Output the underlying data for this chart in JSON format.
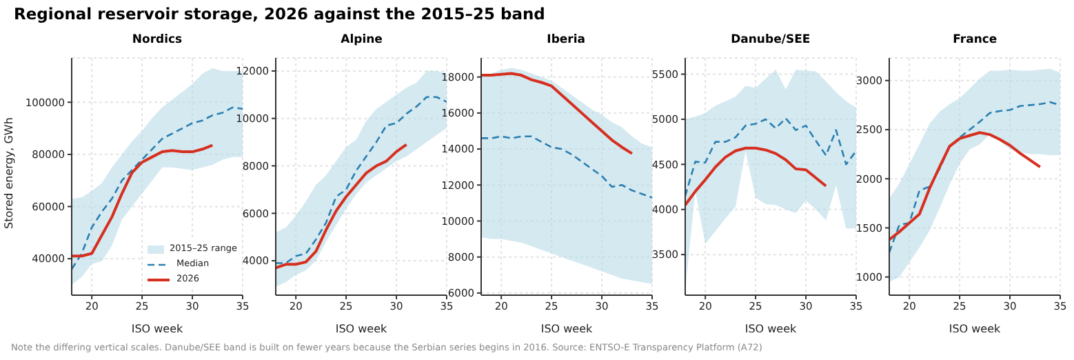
{
  "chart_data": [
    {
      "type": "other",
      "title": "Regional reservoir storage, 2026 against the 2015–25 band",
      "annotations": [
        "Note the differing vertical scales. Danube/SEE band is built on fewer years because the Serbian series begins in 2016. Source: ENTSO-E Transparency Platform (A72)"
      ]
    },
    {
      "type": "line",
      "title": "Nordics",
      "xlabel": "ISO week",
      "ylabel": "Stored energy, GWh",
      "annotations": [
        "2015–25 range"
      ],
      "x": [
        18,
        19,
        20,
        21,
        22,
        23,
        24,
        25,
        26,
        27,
        28,
        29,
        30,
        31,
        32,
        33,
        34,
        35
      ],
      "xlim": [
        18,
        35
      ],
      "xticks": [
        20,
        25,
        30,
        35
      ],
      "ylim": [
        26000,
        117000
      ],
      "yticks": [
        40000,
        60000,
        80000,
        100000
      ],
      "grid": true,
      "legend": "bottom right",
      "series": [
        {
          "type": "line",
          "name": "Median",
          "color": "#2a7fb0",
          "line_style": "dashed",
          "values": [
            36000,
            42000,
            52000,
            58000,
            63000,
            70000,
            74000,
            78000,
            82000,
            86000,
            88000,
            90000,
            92000,
            93000,
            95000,
            96000,
            98000,
            97500
          ],
          "lower": [
            30000,
            33000,
            38000,
            39000,
            45000,
            55000,
            60000,
            65000,
            70000,
            75000,
            75000,
            74500,
            74000,
            75000,
            76000,
            78000,
            79000,
            79000
          ],
          "upper": [
            63000,
            63500,
            66000,
            69000,
            75000,
            80000,
            85000,
            89000,
            94000,
            98000,
            101000,
            104000,
            107000,
            111000,
            113000,
            112000,
            112000,
            112000
          ]
        },
        {
          "type": "line",
          "name": "2026",
          "color": "#d62f1f",
          "line_style": "solid",
          "values": [
            41000,
            41000,
            42000,
            49000,
            56000,
            65000,
            73000,
            77000,
            79000,
            81000,
            81500,
            81000,
            81000,
            82000,
            83500,
            null,
            null,
            null
          ]
        }
      ]
    },
    {
      "type": "line",
      "title": "Alpine",
      "xlabel": "ISO week",
      "x": [
        18,
        19,
        20,
        21,
        22,
        23,
        24,
        25,
        26,
        27,
        28,
        29,
        30,
        31,
        32,
        33,
        34,
        35
      ],
      "xlim": [
        18,
        35
      ],
      "xticks": [
        20,
        25,
        30,
        35
      ],
      "ylim": [
        2550,
        12550
      ],
      "yticks": [
        4000,
        6000,
        8000,
        10000,
        12000
      ],
      "grid": true,
      "series": [
        {
          "type": "line",
          "color": "#2a7fb0",
          "line_style": "dashed",
          "values": [
            3900,
            3900,
            4200,
            4300,
            4900,
            5600,
            6700,
            7000,
            7800,
            8400,
            9000,
            9700,
            9800,
            10200,
            10500,
            10900,
            10900,
            10700
          ],
          "lower": [
            2900,
            3100,
            3400,
            3600,
            4000,
            4800,
            5500,
            6200,
            6800,
            7300,
            7600,
            7900,
            8200,
            8400,
            8700,
            9000,
            9300,
            9600
          ],
          "upper": [
            5200,
            5400,
            5900,
            6500,
            7200,
            7600,
            8200,
            8800,
            9100,
            9900,
            10400,
            10700,
            11000,
            11300,
            11500,
            12000,
            12000,
            11900
          ]
        },
        {
          "type": "line",
          "color": "#d62f1f",
          "line_style": "solid",
          "values": [
            3700,
            3850,
            3850,
            3950,
            4400,
            5300,
            6100,
            6700,
            7200,
            7700,
            8000,
            8200,
            8600,
            8900,
            null,
            null,
            null,
            null
          ]
        }
      ]
    },
    {
      "type": "line",
      "title": "Iberia",
      "xlabel": "ISO week",
      "x": [
        18,
        19,
        20,
        21,
        22,
        23,
        24,
        25,
        26,
        27,
        28,
        29,
        30,
        31,
        32,
        33,
        34,
        35
      ],
      "xlim": [
        18,
        35
      ],
      "xticks": [
        20,
        25,
        30,
        35
      ],
      "ylim": [
        5880,
        19060
      ],
      "yticks": [
        6000,
        8000,
        10000,
        12000,
        14000,
        16000,
        18000
      ],
      "grid": true,
      "series": [
        {
          "type": "line",
          "color": "#2a7fb0",
          "line_style": "dashed",
          "values": [
            14600,
            14600,
            14700,
            14600,
            14700,
            14700,
            14400,
            14100,
            14000,
            13700,
            13300,
            12900,
            12500,
            11900,
            12000,
            11700,
            11500,
            11300
          ],
          "lower": [
            9100,
            9000,
            9000,
            8900,
            8800,
            8600,
            8400,
            8200,
            8000,
            7800,
            7600,
            7400,
            7200,
            7000,
            6800,
            6700,
            6600,
            6500
          ],
          "upper": [
            18100,
            18200,
            18400,
            18500,
            18400,
            18200,
            18000,
            17800,
            17400,
            17000,
            16600,
            16200,
            15900,
            15500,
            15200,
            14700,
            14300,
            14100
          ]
        },
        {
          "type": "line",
          "color": "#d62f1f",
          "line_style": "solid",
          "values": [
            18100,
            18100,
            18150,
            18200,
            18100,
            17850,
            17700,
            17500,
            17000,
            16500,
            16000,
            15500,
            15000,
            14500,
            14100,
            13750,
            null,
            null
          ]
        }
      ]
    },
    {
      "type": "line",
      "title": "Danube/SEE",
      "xlabel": "ISO week",
      "x": [
        18,
        19,
        20,
        21,
        22,
        23,
        24,
        25,
        26,
        27,
        28,
        29,
        30,
        31,
        32,
        33,
        34,
        35
      ],
      "xlim": [
        18,
        35
      ],
      "xticks": [
        20,
        25,
        30,
        35
      ],
      "ylim": [
        3050,
        5680
      ],
      "yticks": [
        3500,
        4000,
        4500,
        5000,
        5500
      ],
      "grid": true,
      "series": [
        {
          "type": "line",
          "color": "#2a7fb0",
          "line_style": "dashed",
          "values": [
            4150,
            4530,
            4520,
            4750,
            4750,
            4800,
            4930,
            4950,
            5000,
            4900,
            5010,
            4880,
            4930,
            4760,
            4600,
            4880,
            4500,
            4650
          ],
          "lower": [
            3100,
            4200,
            3620,
            3760,
            3900,
            4030,
            4650,
            4130,
            4060,
            4050,
            4000,
            3960,
            4100,
            4000,
            3880,
            4270,
            3790,
            3790
          ],
          "upper": [
            5000,
            5030,
            5070,
            5150,
            5200,
            5250,
            5370,
            5350,
            5450,
            5550,
            5330,
            5550,
            5540,
            5530,
            5420,
            5300,
            5200,
            5130
          ]
        },
        {
          "type": "line",
          "color": "#d62f1f",
          "line_style": "solid",
          "values": [
            4050,
            4200,
            4330,
            4470,
            4580,
            4650,
            4680,
            4680,
            4660,
            4620,
            4550,
            4450,
            4440,
            4350,
            4260,
            null,
            null,
            null
          ]
        }
      ]
    },
    {
      "type": "line",
      "title": "France",
      "xlabel": "ISO week",
      "x": [
        18,
        19,
        20,
        21,
        22,
        23,
        24,
        25,
        26,
        27,
        28,
        29,
        30,
        31,
        32,
        33,
        34,
        35
      ],
      "xlim": [
        18,
        35
      ],
      "xticks": [
        20,
        25,
        30,
        35
      ],
      "ylim": [
        815,
        3230
      ],
      "yticks": [
        1000,
        1500,
        2000,
        2500,
        3000
      ],
      "grid": true,
      "series": [
        {
          "type": "line",
          "color": "#2a7fb0",
          "line_style": "dashed",
          "values": [
            1250,
            1530,
            1550,
            1880,
            1920,
            2100,
            2330,
            2420,
            2500,
            2580,
            2670,
            2690,
            2700,
            2740,
            2750,
            2760,
            2780,
            2750
          ],
          "lower": [
            950,
            1000,
            1150,
            1300,
            1470,
            1700,
            1940,
            2150,
            2300,
            2350,
            2450,
            2380,
            2300,
            2270,
            2250,
            2250,
            2240,
            2240
          ],
          "upper": [
            1800,
            1950,
            2150,
            2350,
            2560,
            2680,
            2760,
            2820,
            2920,
            3020,
            3100,
            3100,
            3110,
            3100,
            3100,
            3110,
            3120,
            3080
          ]
        },
        {
          "type": "line",
          "color": "#d62f1f",
          "line_style": "solid",
          "values": [
            1380,
            1460,
            1550,
            1640,
            1900,
            2120,
            2330,
            2410,
            2440,
            2470,
            2450,
            2400,
            2340,
            2260,
            2190,
            2120,
            null,
            null
          ]
        }
      ]
    }
  ]
}
